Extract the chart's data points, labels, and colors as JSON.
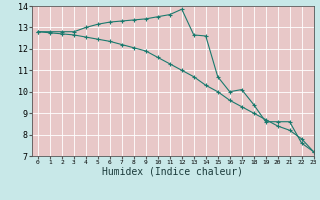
{
  "xlabel": "Humidex (Indice chaleur)",
  "x": [
    0,
    1,
    2,
    3,
    4,
    5,
    6,
    7,
    8,
    9,
    10,
    11,
    12,
    13,
    14,
    15,
    16,
    17,
    18,
    19,
    20,
    21,
    22,
    23
  ],
  "line1": [
    12.8,
    12.8,
    12.8,
    12.8,
    13.0,
    13.15,
    13.25,
    13.3,
    13.35,
    13.4,
    13.5,
    13.6,
    13.85,
    12.65,
    12.6,
    10.7,
    10.0,
    10.1,
    9.4,
    8.6,
    8.6,
    8.6,
    7.6,
    7.2
  ],
  "line2": [
    12.8,
    12.75,
    12.7,
    12.65,
    12.55,
    12.45,
    12.35,
    12.2,
    12.05,
    11.9,
    11.6,
    11.3,
    11.0,
    10.7,
    10.3,
    10.0,
    9.6,
    9.3,
    9.0,
    8.7,
    8.4,
    8.2,
    7.8,
    7.2
  ],
  "line_color": "#1a7a6e",
  "bg_color": "#c8e8e8",
  "plot_bg_color": "#e8c8c8",
  "grid_color": "#ffffff",
  "ylim": [
    7,
    14
  ],
  "xlim": [
    -0.5,
    23
  ],
  "yticks": [
    7,
    8,
    9,
    10,
    11,
    12,
    13,
    14
  ],
  "xticks": [
    0,
    1,
    2,
    3,
    4,
    5,
    6,
    7,
    8,
    9,
    10,
    11,
    12,
    13,
    14,
    15,
    16,
    17,
    18,
    19,
    20,
    21,
    22,
    23
  ],
  "xlabel_fontsize": 7,
  "tick_fontsize": 6
}
